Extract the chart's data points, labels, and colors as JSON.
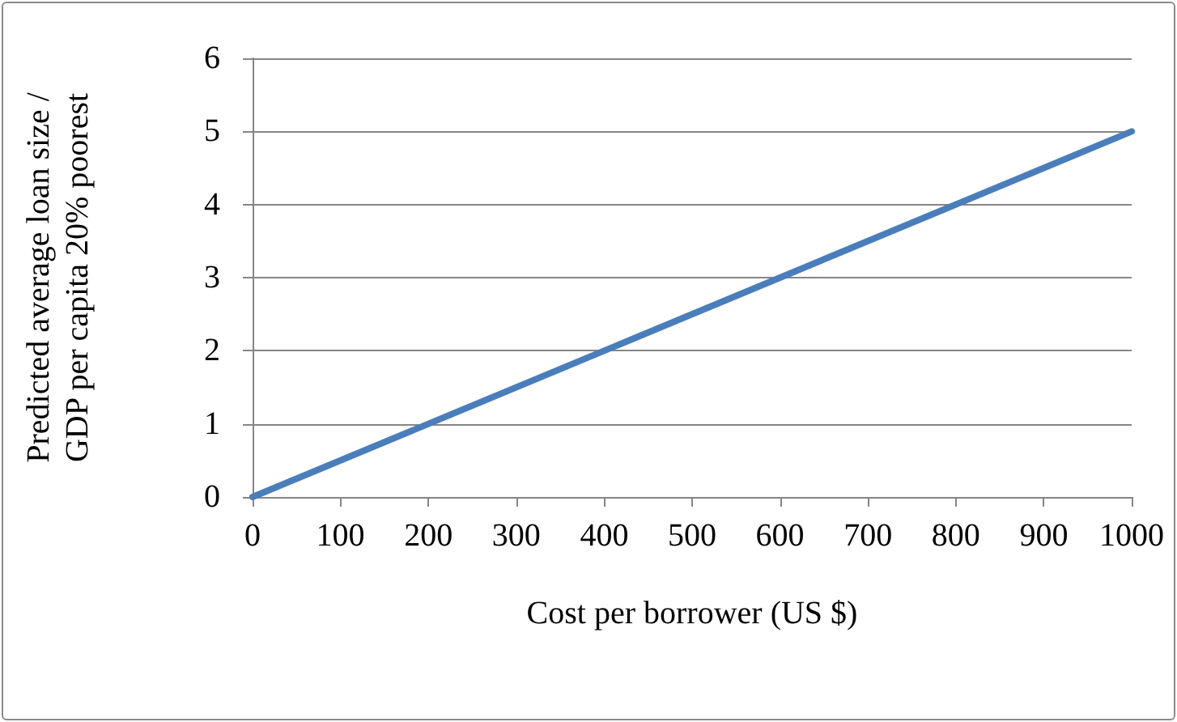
{
  "chart_data": {
    "type": "line",
    "xlabel": "Cost per borrower (US $)",
    "ylabel": "Predicted average loan size / GDP per capita 20% poorest",
    "x": [
      0,
      1000
    ],
    "series": [
      {
        "color": "#4a7ebb",
        "values": [
          0,
          5
        ]
      }
    ],
    "xlim": [
      0,
      1000
    ],
    "xticks": [
      0,
      100,
      200,
      300,
      400,
      500,
      600,
      700,
      800,
      900,
      1000
    ],
    "ylim": [
      0,
      6
    ],
    "yticks": [
      0,
      1,
      2,
      3,
      4,
      5,
      6
    ],
    "grid": "y",
    "marker": "none",
    "line_style": "solid"
  }
}
